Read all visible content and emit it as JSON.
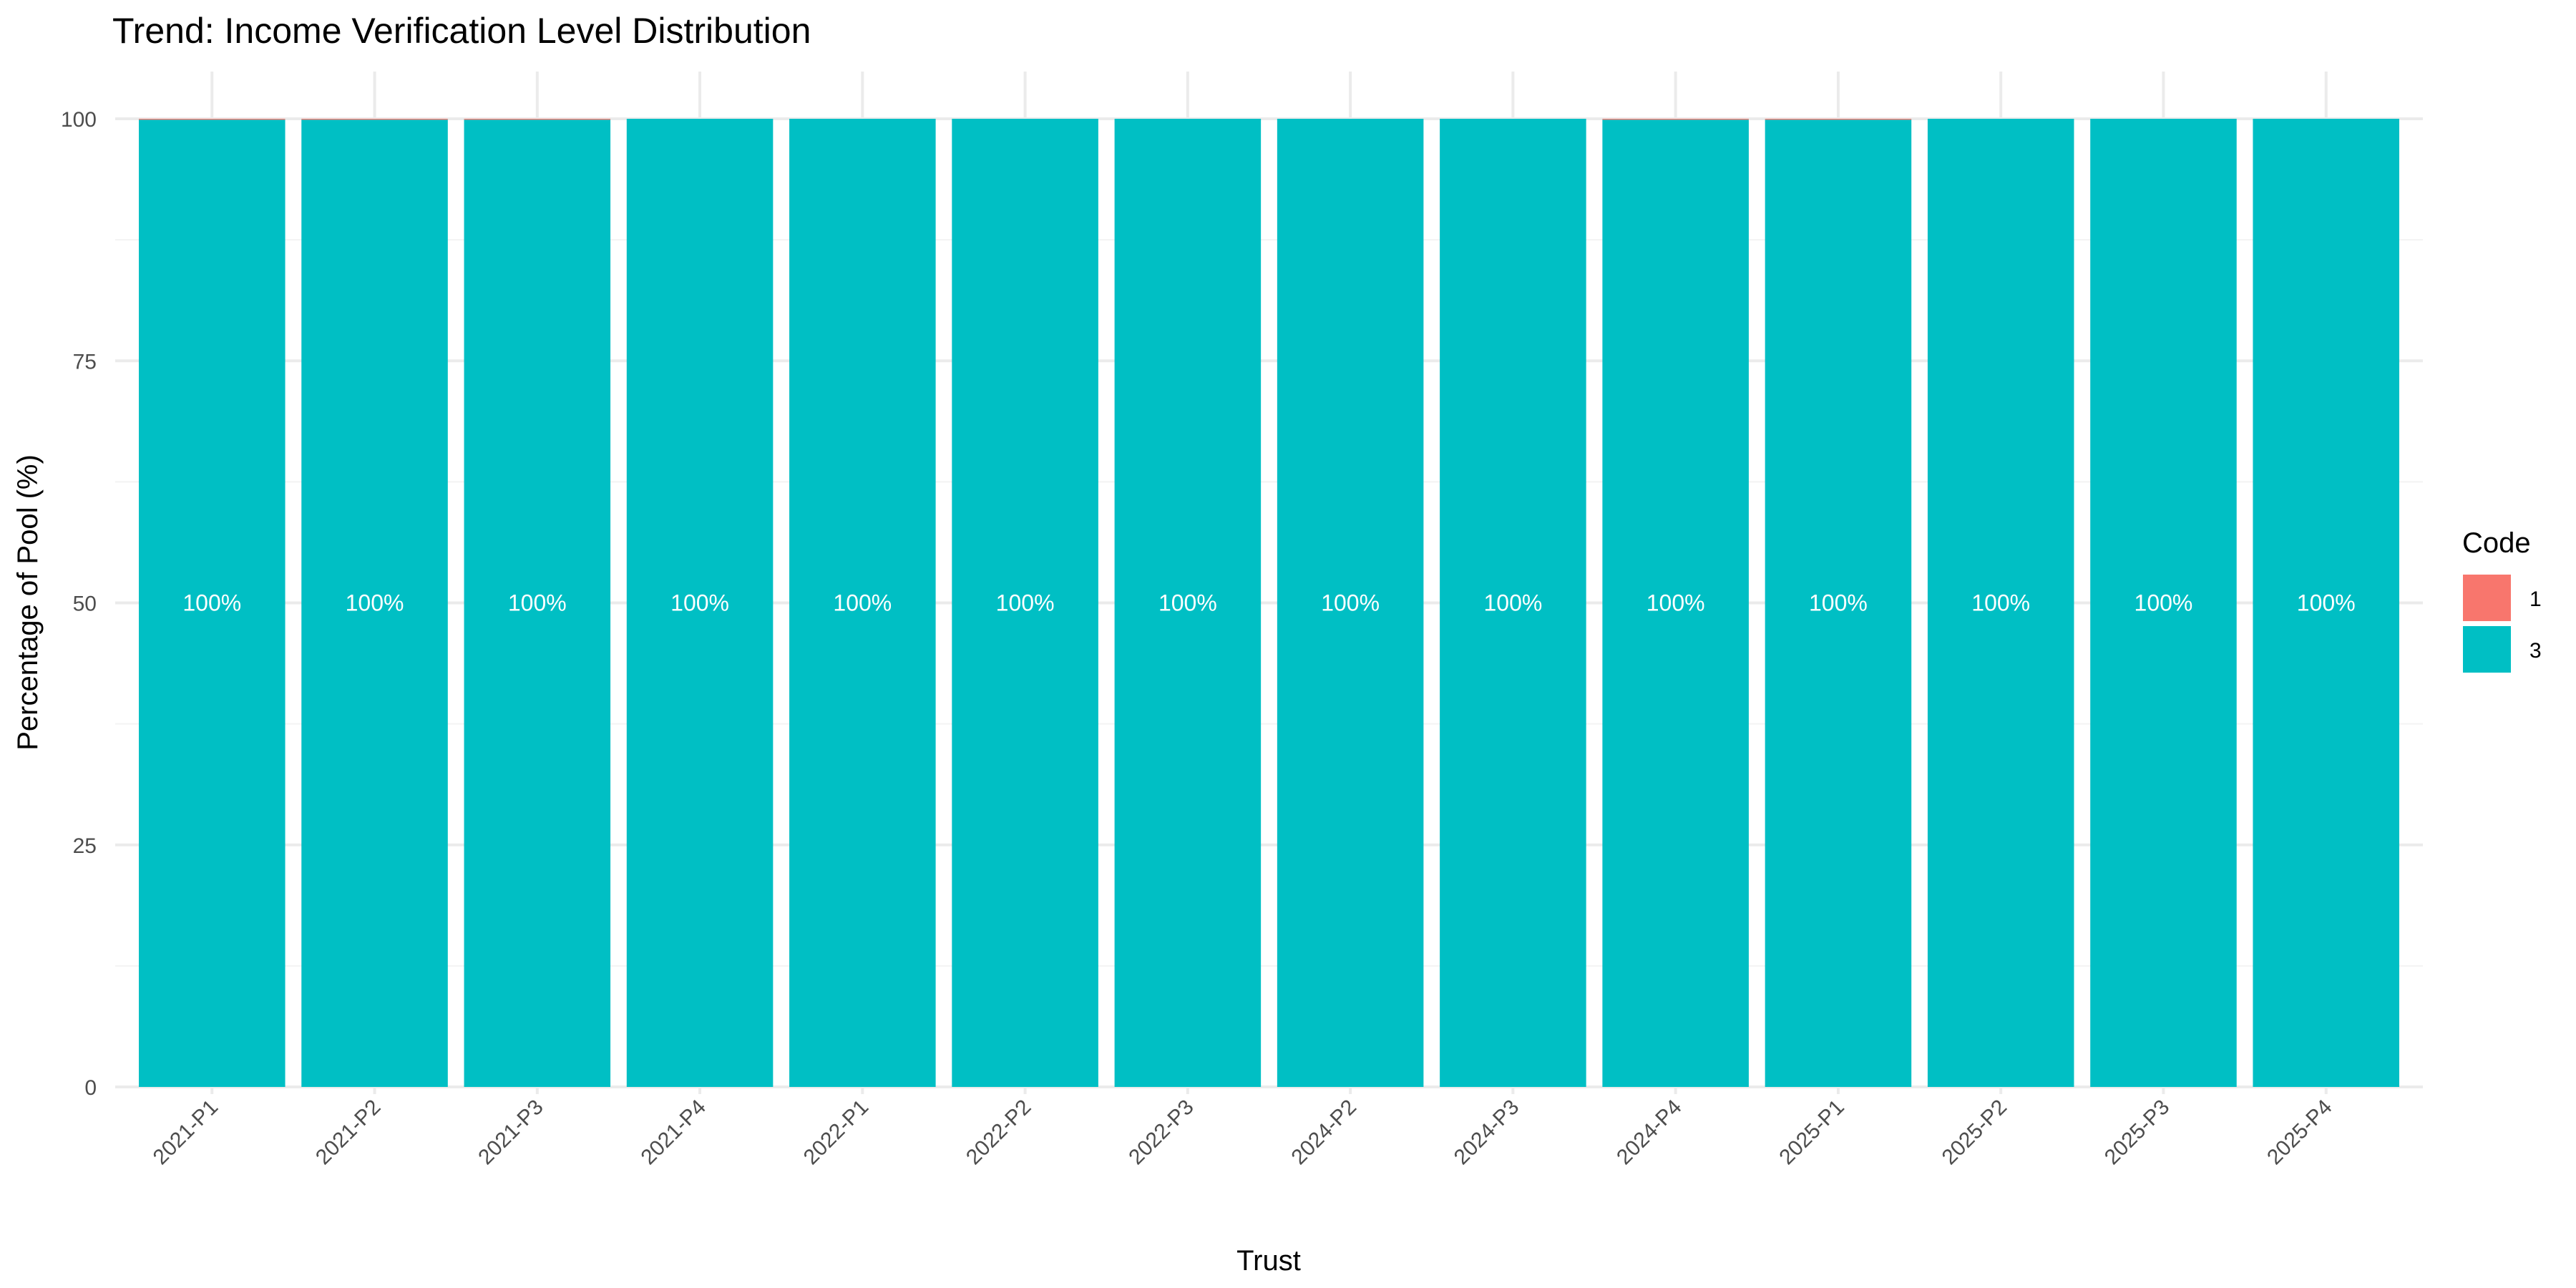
{
  "chart_data": {
    "type": "bar",
    "stacked": true,
    "title": "Trend: Income Verification Level Distribution",
    "xlabel": "Trust",
    "ylabel": "Percentage of Pool (%)",
    "ylim": [
      0,
      100
    ],
    "yticks": [
      0,
      25,
      50,
      75,
      100
    ],
    "grid": true,
    "legend_position": "right",
    "legend_title": "Code",
    "categories": [
      "2021-P1",
      "2021-P2",
      "2021-P3",
      "2021-P4",
      "2022-P1",
      "2022-P2",
      "2022-P3",
      "2024-P2",
      "2024-P3",
      "2024-P4",
      "2025-P1",
      "2025-P2",
      "2025-P3",
      "2025-P4"
    ],
    "series": [
      {
        "name": "1",
        "color": "#F8766D",
        "values": [
          0.1,
          0.1,
          0.1,
          0,
          0,
          0,
          0,
          0,
          0,
          0.1,
          0.1,
          0,
          0,
          0
        ]
      },
      {
        "name": "3",
        "color": "#00BFC4",
        "values": [
          99.9,
          99.9,
          99.9,
          100,
          100,
          100,
          100,
          100,
          100,
          99.9,
          99.9,
          100,
          100,
          100
        ]
      }
    ],
    "data_labels": [
      "100%",
      "100%",
      "100%",
      "100%",
      "100%",
      "100%",
      "100%",
      "100%",
      "100%",
      "100%",
      "100%",
      "100%",
      "100%",
      "100%"
    ]
  }
}
